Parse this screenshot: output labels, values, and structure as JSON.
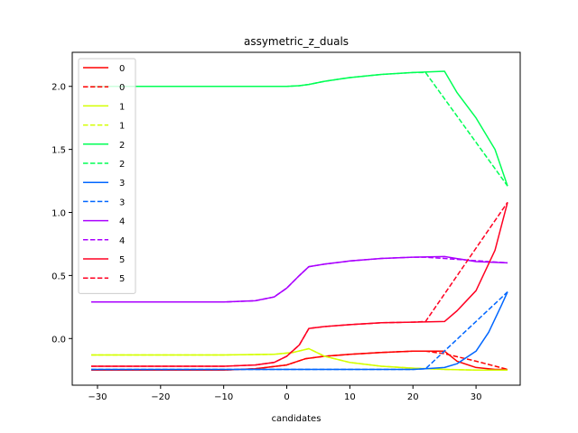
{
  "chart_data": {
    "type": "line",
    "title": "assymetric_z_duals",
    "xlabel": "candidates",
    "ylabel": "",
    "xlim": [
      -34,
      37
    ],
    "ylim": [
      -0.37,
      2.27
    ],
    "xticks": [
      -30,
      -20,
      -10,
      0,
      10,
      20,
      30
    ],
    "yticks": [
      0.0,
      0.5,
      1.0,
      1.5,
      2.0
    ],
    "ytick_labels": [
      "0.0",
      "0.5",
      "1.0",
      "1.5",
      "2.0"
    ],
    "grid": false,
    "legend_position": "upper-left",
    "series": [
      {
        "name": "0",
        "color": "#ff0000",
        "style": "solid",
        "x": [
          -31,
          -10,
          -5,
          0,
          3,
          6,
          10,
          15,
          20,
          25,
          27,
          30,
          33,
          35
        ],
        "y": [
          -0.25,
          -0.25,
          -0.24,
          -0.21,
          -0.16,
          -0.14,
          -0.125,
          -0.11,
          -0.1,
          -0.1,
          -0.18,
          -0.23,
          -0.245,
          -0.245
        ]
      },
      {
        "name": "0",
        "color": "#ff0000",
        "style": "dashed",
        "x": [
          -31,
          -10,
          -5,
          0,
          3,
          6,
          10,
          15,
          20,
          22,
          25,
          30,
          35
        ],
        "y": [
          -0.25,
          -0.25,
          -0.24,
          -0.21,
          -0.16,
          -0.14,
          -0.125,
          -0.11,
          -0.1,
          -0.1,
          -0.12,
          -0.18,
          -0.245
        ]
      },
      {
        "name": "1",
        "color": "#d4ff00",
        "style": "solid",
        "x": [
          -31,
          -10,
          -2,
          1,
          3.5,
          6,
          10,
          15,
          20,
          25,
          30,
          35
        ],
        "y": [
          -0.13,
          -0.13,
          -0.125,
          -0.11,
          -0.08,
          -0.14,
          -0.19,
          -0.22,
          -0.235,
          -0.245,
          -0.25,
          -0.25
        ]
      },
      {
        "name": "1",
        "color": "#d4ff00",
        "style": "dashed",
        "x": [
          -31,
          -10,
          -2,
          1,
          3.5,
          6,
          10,
          15,
          20,
          25,
          30,
          35
        ],
        "y": [
          -0.13,
          -0.13,
          -0.125,
          -0.11,
          -0.08,
          -0.14,
          -0.19,
          -0.22,
          -0.235,
          -0.245,
          -0.25,
          -0.25
        ]
      },
      {
        "name": "2",
        "color": "#00ff55",
        "style": "solid",
        "x": [
          -31,
          -20,
          -10,
          0,
          2,
          3.5,
          6,
          10,
          15,
          20,
          25,
          27,
          30,
          33,
          35
        ],
        "y": [
          2.0,
          2.0,
          2.0,
          2.0,
          2.005,
          2.015,
          2.04,
          2.07,
          2.095,
          2.11,
          2.12,
          1.95,
          1.75,
          1.5,
          1.21
        ]
      },
      {
        "name": "2",
        "color": "#00ff55",
        "style": "dashed",
        "x": [
          -31,
          -20,
          -10,
          0,
          2,
          3.5,
          6,
          10,
          15,
          20,
          22,
          35
        ],
        "y": [
          2.0,
          2.0,
          2.0,
          2.0,
          2.005,
          2.015,
          2.04,
          2.07,
          2.095,
          2.11,
          2.11,
          1.21
        ]
      },
      {
        "name": "3",
        "color": "#0066ff",
        "style": "solid",
        "x": [
          -31,
          -10,
          0,
          10,
          20,
          22,
          25,
          27,
          30,
          32,
          34,
          35
        ],
        "y": [
          -0.245,
          -0.245,
          -0.245,
          -0.245,
          -0.245,
          -0.24,
          -0.23,
          -0.2,
          -0.1,
          0.05,
          0.26,
          0.37
        ]
      },
      {
        "name": "3",
        "color": "#0066ff",
        "style": "dashed",
        "x": [
          -31,
          -10,
          0,
          10,
          20,
          22,
          35
        ],
        "y": [
          -0.245,
          -0.245,
          -0.245,
          -0.245,
          -0.245,
          -0.24,
          0.37
        ]
      },
      {
        "name": "4",
        "color": "#aa00ff",
        "style": "solid",
        "x": [
          -31,
          -20,
          -10,
          -5,
          -2,
          0,
          2,
          3.5,
          6,
          10,
          15,
          20,
          25,
          30,
          35
        ],
        "y": [
          0.29,
          0.29,
          0.29,
          0.3,
          0.33,
          0.4,
          0.5,
          0.57,
          0.59,
          0.615,
          0.635,
          0.645,
          0.65,
          0.61,
          0.6
        ]
      },
      {
        "name": "4",
        "color": "#aa00ff",
        "style": "dashed",
        "x": [
          -31,
          -20,
          -10,
          -5,
          -2,
          0,
          2,
          3.5,
          6,
          10,
          15,
          20,
          22,
          35
        ],
        "y": [
          0.29,
          0.29,
          0.29,
          0.3,
          0.33,
          0.4,
          0.5,
          0.57,
          0.59,
          0.615,
          0.635,
          0.645,
          0.645,
          0.6
        ]
      },
      {
        "name": "5",
        "color": "#ff0022",
        "style": "solid",
        "x": [
          -31,
          -10,
          -5,
          -2,
          0,
          2,
          3.5,
          6,
          10,
          15,
          20,
          25,
          27,
          30,
          33,
          35
        ],
        "y": [
          -0.22,
          -0.22,
          -0.21,
          -0.19,
          -0.14,
          -0.05,
          0.08,
          0.095,
          0.11,
          0.125,
          0.13,
          0.135,
          0.22,
          0.38,
          0.7,
          1.08
        ]
      },
      {
        "name": "5",
        "color": "#ff0022",
        "style": "dashed",
        "x": [
          -31,
          -10,
          -5,
          -2,
          0,
          2,
          3.5,
          6,
          10,
          15,
          20,
          22,
          35
        ],
        "y": [
          -0.22,
          -0.22,
          -0.21,
          -0.19,
          -0.14,
          -0.05,
          0.08,
          0.095,
          0.11,
          0.125,
          0.13,
          0.135,
          1.08
        ]
      }
    ]
  }
}
